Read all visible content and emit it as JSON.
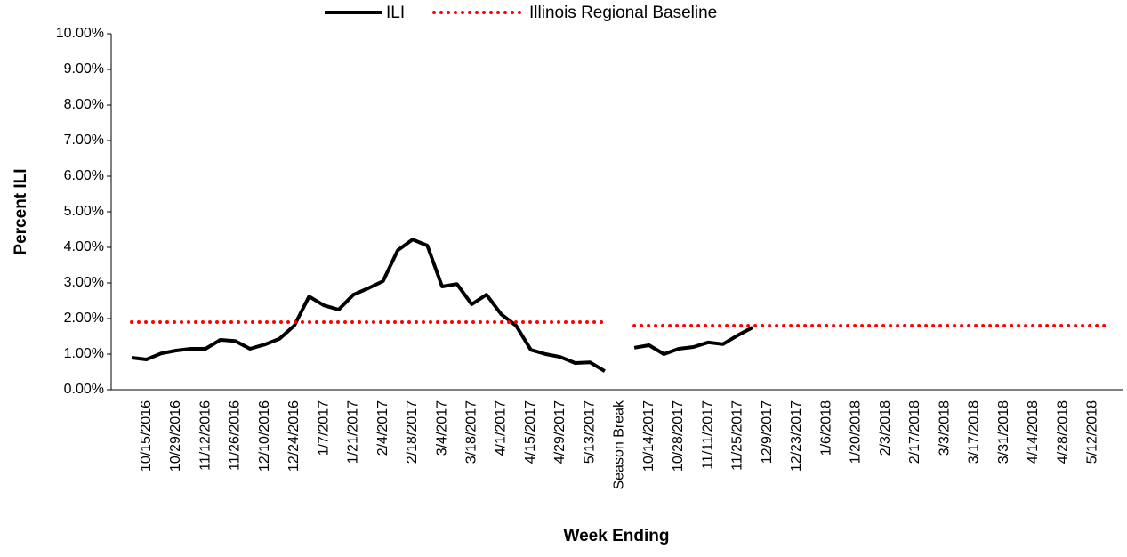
{
  "chart_data": {
    "type": "line",
    "x_label": "Week Ending",
    "y_label": "Percent ILI",
    "categories": [
      null,
      "10/15/2016",
      null,
      "10/29/2016",
      null,
      "11/12/2016",
      null,
      "11/26/2016",
      null,
      "12/10/2016",
      null,
      "12/24/2016",
      null,
      "1/7/2017",
      null,
      "1/21/2017",
      null,
      "2/4/2017",
      null,
      "2/18/2017",
      null,
      "3/4/2017",
      null,
      "3/18/2017",
      null,
      "4/1/2017",
      null,
      "4/15/2017",
      null,
      "4/29/2017",
      null,
      "5/13/2017",
      null,
      "Season Break",
      null,
      "10/14/2017",
      null,
      "10/28/2017",
      null,
      "11/11/2017",
      null,
      "11/25/2017",
      null,
      "12/9/2017",
      null,
      "12/23/2017",
      null,
      "1/6/2018",
      null,
      "1/20/2018",
      null,
      "2/3/2018",
      null,
      "2/17/2018",
      null,
      "3/3/2018",
      null,
      "3/17/2018",
      null,
      "3/31/2018",
      null,
      "4/14/2018",
      null,
      "4/28/2018",
      null,
      "5/12/2018",
      null
    ],
    "series": [
      {
        "name": "ILI",
        "color": "#000000",
        "style": "solid",
        "values": [
          0.9,
          0.85,
          1.02,
          1.1,
          1.15,
          1.15,
          1.4,
          1.37,
          1.15,
          1.27,
          1.43,
          1.8,
          2.62,
          2.37,
          2.25,
          2.67,
          2.85,
          3.05,
          3.92,
          4.22,
          4.05,
          2.9,
          2.97,
          2.4,
          2.67,
          2.12,
          1.8,
          1.12,
          1.0,
          0.92,
          0.75,
          0.77,
          0.52,
          null,
          1.18,
          1.25,
          1.0,
          1.15,
          1.2,
          1.33,
          1.28,
          1.53,
          1.75,
          null,
          null,
          null,
          null,
          null,
          null,
          null,
          null,
          null,
          null,
          null,
          null,
          null,
          null,
          null,
          null,
          null,
          null,
          null,
          null,
          null,
          null,
          null,
          null
        ]
      },
      {
        "name": "Illinois Regional Baseline",
        "color": "#ff0000",
        "style": "dotted",
        "values": [
          1.9,
          1.9,
          1.9,
          1.9,
          1.9,
          1.9,
          1.9,
          1.9,
          1.9,
          1.9,
          1.9,
          1.9,
          1.9,
          1.9,
          1.9,
          1.9,
          1.9,
          1.9,
          1.9,
          1.9,
          1.9,
          1.9,
          1.9,
          1.9,
          1.9,
          1.9,
          1.9,
          1.9,
          1.9,
          1.9,
          1.9,
          1.9,
          1.9,
          null,
          1.8,
          1.8,
          1.8,
          1.8,
          1.8,
          1.8,
          1.8,
          1.8,
          1.8,
          1.8,
          1.8,
          1.8,
          1.8,
          1.8,
          1.8,
          1.8,
          1.8,
          1.8,
          1.8,
          1.8,
          1.8,
          1.8,
          1.8,
          1.8,
          1.8,
          1.8,
          1.8,
          1.8,
          1.8,
          1.8,
          1.8,
          1.8,
          1.8
        ]
      }
    ],
    "ylim": [
      0,
      10
    ],
    "yticks": [
      {
        "value": 0,
        "label": "0.00%"
      },
      {
        "value": 1,
        "label": "1.00%"
      },
      {
        "value": 2,
        "label": "2.00%"
      },
      {
        "value": 3,
        "label": "3.00%"
      },
      {
        "value": 4,
        "label": "4.00%"
      },
      {
        "value": 5,
        "label": "5.00%"
      },
      {
        "value": 6,
        "label": "6.00%"
      },
      {
        "value": 7,
        "label": "7.00%"
      },
      {
        "value": 8,
        "label": "8.00%"
      },
      {
        "value": 9,
        "label": "9.00%"
      },
      {
        "value": 10,
        "label": "10.00%"
      }
    ],
    "legend": "top"
  }
}
